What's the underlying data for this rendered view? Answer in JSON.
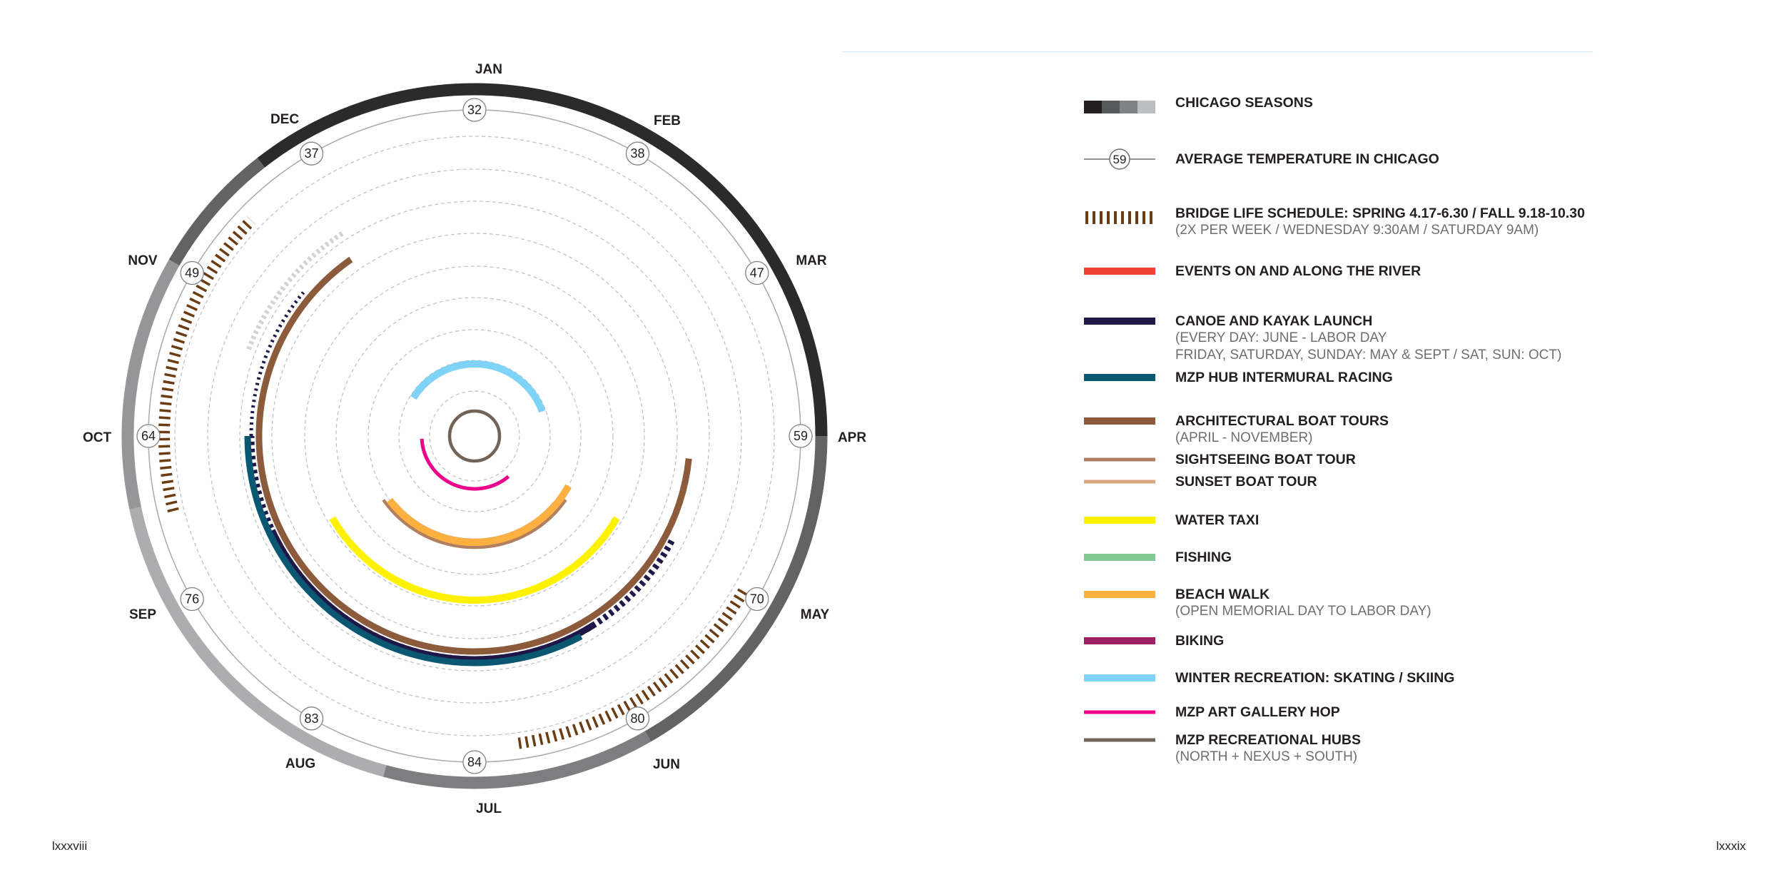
{
  "months": [
    "JAN",
    "FEB",
    "MAR",
    "APR",
    "MAY",
    "JUN",
    "JUL",
    "AUG",
    "SEP",
    "OCT",
    "NOV",
    "DEC"
  ],
  "temperatures": [
    "32",
    "38",
    "47",
    "59",
    "70",
    "80",
    "84",
    "83",
    "76",
    "64",
    "49",
    "37"
  ],
  "season_colors": [
    "#2b2b2b",
    "#4a4a4a",
    "#636364",
    "#7e7e80",
    "#969698",
    "#adadaf",
    "#c0c0c2"
  ],
  "legend": [
    {
      "key": "seasons",
      "title": "CHICAGO SEASONS",
      "sub": []
    },
    {
      "key": "temperature",
      "title": "AVERAGE TEMPERATURE IN CHICAGO",
      "sub": [],
      "sample": "59"
    },
    {
      "key": "bridge",
      "title": "BRIDGE LIFE SCHEDULE: SPRING 4.17-6.30 / FALL 9.18-10.30",
      "sub": [
        "(2X PER WEEK / WEDNESDAY 9:30AM / SATURDAY 9AM)"
      ],
      "color": "#6b3b12"
    },
    {
      "key": "events",
      "title": "EVENTS ON AND ALONG THE RIVER",
      "sub": [],
      "color": "#ef4136"
    },
    {
      "key": "canoe",
      "title": "CANOE AND KAYAK LAUNCH",
      "sub": [
        "(EVERY DAY: JUNE - LABOR DAY",
        "FRIDAY, SATURDAY, SUNDAY: MAY & SEPT / SAT, SUN: OCT)"
      ],
      "color": "#1f1747"
    },
    {
      "key": "mzp_racing",
      "title": "MZP HUB INTERMURAL RACING",
      "sub": [],
      "color": "#0a5772"
    },
    {
      "key": "arch",
      "title": "ARCHITECTURAL BOAT TOURS",
      "sub": [
        "(APRIL - NOVEMBER)"
      ],
      "color": "#8c5b3b"
    },
    {
      "key": "sightseeing",
      "title": "SIGHTSEEING BOAT TOUR",
      "sub": [],
      "color": "#b08060"
    },
    {
      "key": "sunset",
      "title": "SUNSET BOAT TOUR",
      "sub": [],
      "color": "#d9a77e"
    },
    {
      "key": "water_taxi",
      "title": "WATER TAXI",
      "sub": [],
      "color": "#fff200"
    },
    {
      "key": "fishing",
      "title": "FISHING",
      "sub": [],
      "color": "#80c894"
    },
    {
      "key": "beach",
      "title": "BEACH WALK",
      "sub": [
        "(OPEN MEMORIAL DAY TO LABOR DAY)"
      ],
      "color": "#fbb040"
    },
    {
      "key": "biking",
      "title": "BIKING",
      "sub": [],
      "color": "#9e1f63"
    },
    {
      "key": "winter",
      "title": "WINTER RECREATION: SKATING / SKIING",
      "sub": [],
      "color": "#7fd3f7"
    },
    {
      "key": "gallery",
      "title": "MZP ART GALLERY HOP",
      "sub": [],
      "color": "#ec008c"
    },
    {
      "key": "hubs",
      "title": "MZP RECREATIONAL HUBS",
      "sub": [
        "(NORTH + NEXUS + SOUTH)"
      ],
      "color": "#736357"
    }
  ],
  "page_left": "lxxxviii",
  "page_right": "lxxxix"
}
